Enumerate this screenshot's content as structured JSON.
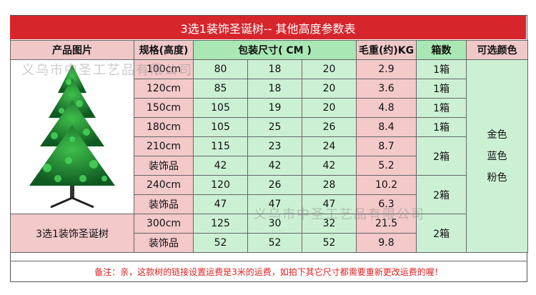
{
  "title": "3选1装饰圣诞树-- 其他高度参数表",
  "headers": {
    "image": "产品图片",
    "size": "规格(高度)",
    "packing": "包装尺寸( CM )",
    "weight": "毛重(约)KG",
    "boxes": "箱数",
    "colors": "可选颜色"
  },
  "rows": [
    {
      "size": "100cm",
      "l": "80",
      "w": "18",
      "h": "20",
      "weight": "2.9"
    },
    {
      "size": "120cm",
      "l": "85",
      "w": "18",
      "h": "20",
      "weight": "3.6"
    },
    {
      "size": "150cm",
      "l": "105",
      "w": "19",
      "h": "20",
      "weight": "4.8"
    },
    {
      "size": "180cm",
      "l": "105",
      "w": "25",
      "h": "26",
      "weight": "8.4"
    },
    {
      "size": "210cm",
      "l": "115",
      "w": "23",
      "h": "24",
      "weight": "8.7"
    },
    {
      "size": "装饰品",
      "l": "42",
      "w": "42",
      "h": "42",
      "weight": "5.2"
    },
    {
      "size": "240cm",
      "l": "120",
      "w": "26",
      "h": "28",
      "weight": "10.2"
    },
    {
      "size": "装饰品",
      "l": "47",
      "w": "47",
      "h": "47",
      "weight": "6.3"
    },
    {
      "size": "300cm",
      "l": "125",
      "w": "30",
      "h": "32",
      "weight": "21.5"
    },
    {
      "size": "装饰品",
      "l": "52",
      "w": "52",
      "h": "52",
      "weight": "9.8"
    }
  ],
  "boxes": {
    "b100": "1箱",
    "b120": "1箱",
    "b150": "1箱",
    "b180": "1箱",
    "b210": "2箱",
    "b240": "2箱",
    "b300": "2箱"
  },
  "colors": [
    "金色",
    "蓝色",
    "粉色"
  ],
  "product_name": "3选1装饰圣诞树",
  "note": "备注：亲，这款树的链接设置运费是3米的运费，如拍下其它尺寸都需要重新更改运费的喔！",
  "watermark": "义乌市中圣工艺品有限公司",
  "accent_colors": {
    "title_bg": "#d6262c",
    "header_pink": "#f0c8c8",
    "green": "#a9e8b4",
    "note": "#e02020"
  }
}
